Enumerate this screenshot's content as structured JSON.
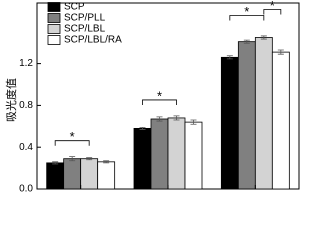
{
  "chart_data": {
    "type": "bar",
    "y_label": "吸光度值",
    "categories": [
      null,
      null,
      null
    ],
    "series": [
      {
        "name": "SCP",
        "color": "#000000",
        "values": [
          0.25,
          0.58,
          1.26
        ],
        "errors": [
          0.01,
          0.01,
          0.015
        ]
      },
      {
        "name": "SCP/PLL",
        "color": "#808080",
        "values": [
          0.29,
          0.67,
          1.41
        ],
        "errors": [
          0.02,
          0.02,
          0.015
        ]
      },
      {
        "name": "SCP/LBL",
        "color": "#d3d3d3",
        "values": [
          0.29,
          0.68,
          1.45
        ],
        "errors": [
          0.01,
          0.02,
          0.015
        ]
      },
      {
        "name": "SCP/LBL/RA",
        "color": "#ffffff",
        "values": [
          0.26,
          0.64,
          1.31
        ],
        "errors": [
          0.01,
          0.02,
          0.02
        ]
      }
    ],
    "significance": [
      "*",
      "*",
      "*",
      "*"
    ],
    "ylim": [
      0,
      1.78
    ],
    "yticks": [
      {
        "value": 0,
        "label": "0.0"
      },
      0.4,
      0.8,
      1.2
    ],
    "grid": false
  }
}
